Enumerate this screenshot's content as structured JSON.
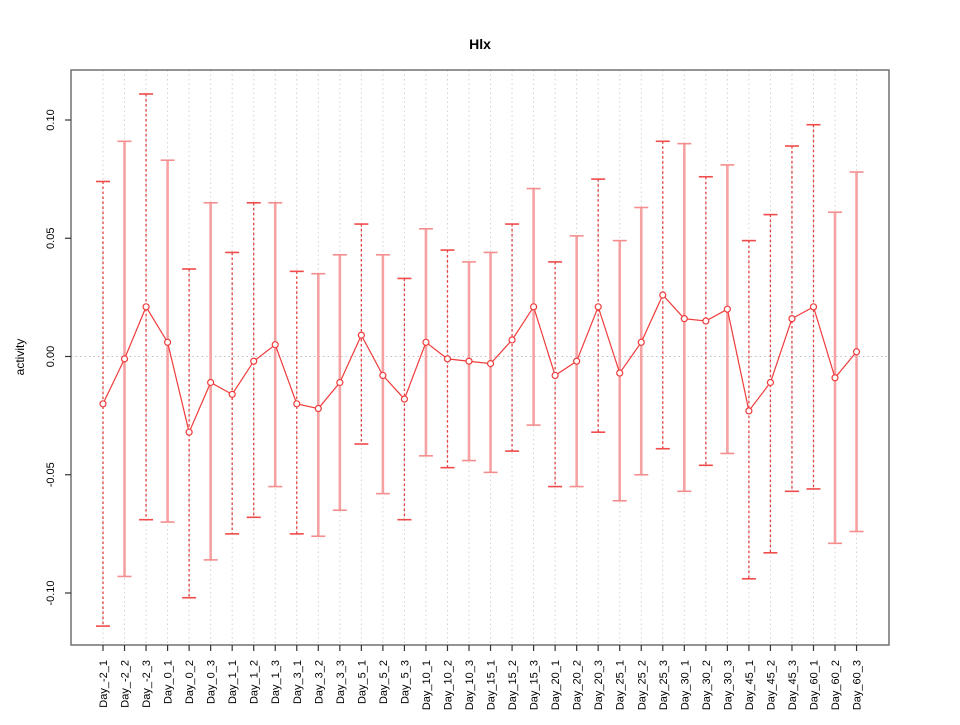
{
  "title": "Hlx",
  "ylabel": "activity",
  "chart_data": {
    "type": "line",
    "title": "Hlx",
    "xlabel": "",
    "ylabel": "activity",
    "ylim": [
      -0.122,
      0.121
    ],
    "yticks": [
      -0.1,
      -0.05,
      0.0,
      0.05,
      0.1
    ],
    "ytick_labels": [
      "-0.10",
      "-0.05",
      "0.00",
      "0.05",
      "0.10"
    ],
    "grid": "vertical dotted gridline at every category; dotted horizontal reference line at y=0",
    "legend": "none",
    "marker": "open-circle",
    "error_bars": true,
    "categories": [
      "Day_-2_1",
      "Day_-2_2",
      "Day_-2_3",
      "Day_0_1",
      "Day_0_2",
      "Day_0_3",
      "Day_1_1",
      "Day_1_2",
      "Day_1_3",
      "Day_3_1",
      "Day_3_2",
      "Day_3_3",
      "Day_5_1",
      "Day_5_2",
      "Day_5_3",
      "Day_10_1",
      "Day_10_2",
      "Day_10_3",
      "Day_15_1",
      "Day_15_2",
      "Day_15_3",
      "Day_20_1",
      "Day_20_2",
      "Day_20_3",
      "Day_25_1",
      "Day_25_2",
      "Day_25_3",
      "Day_30_1",
      "Day_30_2",
      "Day_30_3",
      "Day_45_1",
      "Day_45_2",
      "Day_45_3",
      "Day_60_1",
      "Day_60_2",
      "Day_60_3"
    ],
    "series": [
      {
        "name": "activity",
        "values": [
          -0.02,
          -0.001,
          0.021,
          0.006,
          -0.032,
          -0.011,
          -0.016,
          -0.002,
          0.005,
          -0.02,
          -0.022,
          -0.011,
          0.009,
          -0.008,
          -0.018,
          0.006,
          -0.001,
          -0.002,
          -0.003,
          0.007,
          0.021,
          -0.008,
          -0.002,
          0.021,
          -0.007,
          0.006,
          0.026,
          0.016,
          0.015,
          0.02,
          -0.023,
          -0.011,
          0.016,
          0.021,
          -0.009,
          0.002
        ],
        "upper": [
          0.074,
          0.091,
          0.111,
          0.083,
          0.037,
          0.065,
          0.044,
          0.065,
          0.065,
          0.036,
          0.035,
          0.043,
          0.056,
          0.043,
          0.033,
          0.054,
          0.045,
          0.04,
          0.044,
          0.056,
          0.071,
          0.04,
          0.051,
          0.075,
          0.049,
          0.063,
          0.091,
          0.09,
          0.076,
          0.081,
          0.049,
          0.06,
          0.089,
          0.098,
          0.061,
          0.078
        ],
        "lower": [
          -0.114,
          -0.093,
          -0.069,
          -0.07,
          -0.102,
          -0.086,
          -0.075,
          -0.068,
          -0.055,
          -0.075,
          -0.076,
          -0.065,
          -0.037,
          -0.058,
          -0.069,
          -0.042,
          -0.047,
          -0.044,
          -0.049,
          -0.04,
          -0.029,
          -0.055,
          -0.055,
          -0.032,
          -0.061,
          -0.05,
          -0.039,
          -0.057,
          -0.046,
          -0.041,
          -0.094,
          -0.083,
          -0.057,
          -0.056,
          -0.079,
          -0.074
        ],
        "bar_styles": [
          "dashed",
          "solid",
          "dashed",
          "solid",
          "dashed",
          "solid",
          "dashed",
          "dashed",
          "solid",
          "dashed",
          "solid",
          "solid",
          "dashed",
          "solid",
          "dashed",
          "solid",
          "dashed",
          "solid",
          "solid",
          "dashed",
          "solid",
          "dashed",
          "solid",
          "dashed",
          "solid",
          "solid",
          "dashed",
          "solid",
          "dashed",
          "solid",
          "dashed",
          "dashed",
          "dashed",
          "dashed",
          "solid",
          "solid"
        ]
      }
    ],
    "colors": {
      "line": "#ef3b3b",
      "marker": "#ef3b3b",
      "bar_dashed": "#e04040",
      "bar_solid": "#f7a2a2",
      "cap_dashed": "#ef4b4b",
      "cap_solid": "#f48e8e",
      "grid": "#d2d2d2",
      "zero_line": "#c0c0c0",
      "box": "#666666",
      "tick": "#333333",
      "text": "#000000"
    }
  }
}
